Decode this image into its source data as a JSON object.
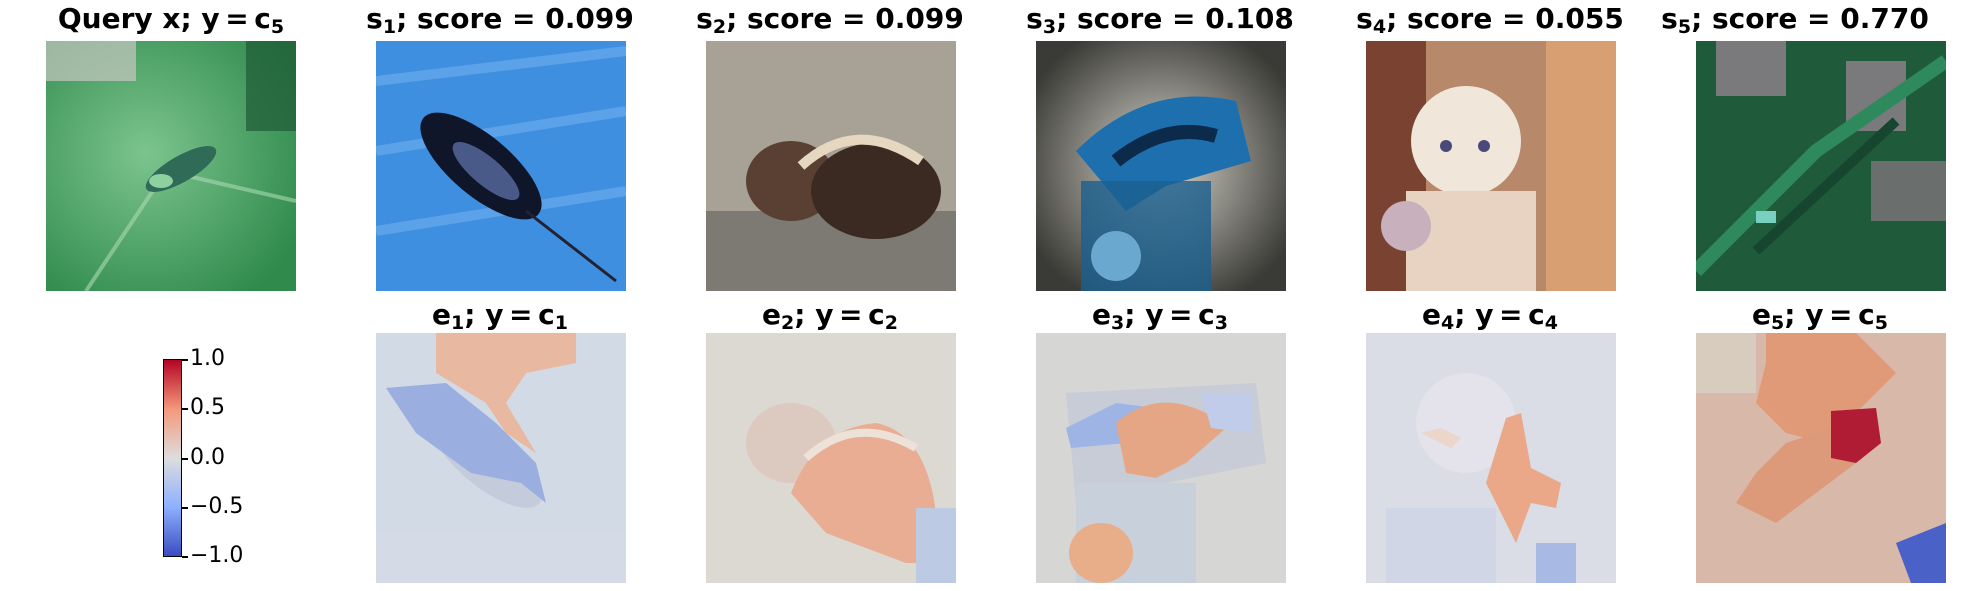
{
  "query_panel": {
    "title_text": "Query x; y = c",
    "title_sub": "5"
  },
  "similar_panels": [
    {
      "s": "s",
      "sub": "1",
      "rest": "; score = 0.099"
    },
    {
      "s": "s",
      "sub": "2",
      "rest": "; score = 0.099"
    },
    {
      "s": "s",
      "sub": "3",
      "rest": "; score = 0.108"
    },
    {
      "s": "s",
      "sub": "4",
      "rest": "; score = 0.055"
    },
    {
      "s": "s",
      "sub": "5",
      "rest": "; score = 0.770"
    }
  ],
  "explanation_panels": [
    {
      "e": "e",
      "sub": "1",
      "mid": "; y = c",
      "csub": "1"
    },
    {
      "e": "e",
      "sub": "2",
      "mid": "; y = c",
      "csub": "2"
    },
    {
      "e": "e",
      "sub": "3",
      "mid": "; y = c",
      "csub": "3"
    },
    {
      "e": "e",
      "sub": "4",
      "mid": "; y = c",
      "csub": "4"
    },
    {
      "e": "e",
      "sub": "5",
      "mid": "; y = c",
      "csub": "5"
    }
  ],
  "colorbar": {
    "ticks": [
      "1.0",
      "0.5",
      "0.0",
      "−0.5",
      "−1.0"
    ],
    "colormap": [
      "#b40426",
      "#f4987a",
      "#dddddd",
      "#8db0fe",
      "#3b4cc0"
    ]
  }
}
